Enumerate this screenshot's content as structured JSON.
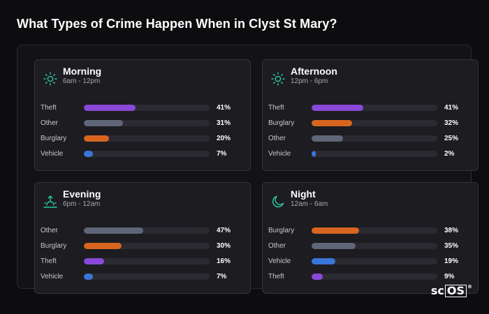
{
  "title": "What Types of Crime Happen When in Clyst St Mary?",
  "colors": {
    "Theft": "#8a48d6",
    "Other": "#5f6677",
    "Burglary": "#d8651f",
    "Vehicle": "#3a75d8",
    "icon_accent": "#2fc6a0"
  },
  "brand": {
    "prefix": "sc",
    "box": "OS",
    "mark": "®"
  },
  "periods": [
    {
      "id": "morning",
      "title": "Morning",
      "range": "6am - 12pm",
      "icon": "sun-icon",
      "rows": [
        {
          "label": "Theft",
          "pct": 41,
          "pct_text": "41%"
        },
        {
          "label": "Other",
          "pct": 31,
          "pct_text": "31%"
        },
        {
          "label": "Burglary",
          "pct": 20,
          "pct_text": "20%"
        },
        {
          "label": "Vehicle",
          "pct": 7,
          "pct_text": "7%"
        }
      ]
    },
    {
      "id": "afternoon",
      "title": "Afternoon",
      "range": "12pm - 6pm",
      "icon": "sun-icon",
      "rows": [
        {
          "label": "Theft",
          "pct": 41,
          "pct_text": "41%"
        },
        {
          "label": "Burglary",
          "pct": 32,
          "pct_text": "32%"
        },
        {
          "label": "Other",
          "pct": 25,
          "pct_text": "25%"
        },
        {
          "label": "Vehicle",
          "pct": 2,
          "pct_text": "2%"
        }
      ]
    },
    {
      "id": "evening",
      "title": "Evening",
      "range": "6pm - 12am",
      "icon": "sunset-icon",
      "rows": [
        {
          "label": "Other",
          "pct": 47,
          "pct_text": "47%"
        },
        {
          "label": "Burglary",
          "pct": 30,
          "pct_text": "30%"
        },
        {
          "label": "Theft",
          "pct": 16,
          "pct_text": "16%"
        },
        {
          "label": "Vehicle",
          "pct": 7,
          "pct_text": "7%"
        }
      ]
    },
    {
      "id": "night",
      "title": "Night",
      "range": "12am - 6am",
      "icon": "moon-icon",
      "rows": [
        {
          "label": "Burglary",
          "pct": 38,
          "pct_text": "38%"
        },
        {
          "label": "Other",
          "pct": 35,
          "pct_text": "35%"
        },
        {
          "label": "Vehicle",
          "pct": 19,
          "pct_text": "19%"
        },
        {
          "label": "Theft",
          "pct": 9,
          "pct_text": "9%"
        }
      ]
    }
  ]
}
